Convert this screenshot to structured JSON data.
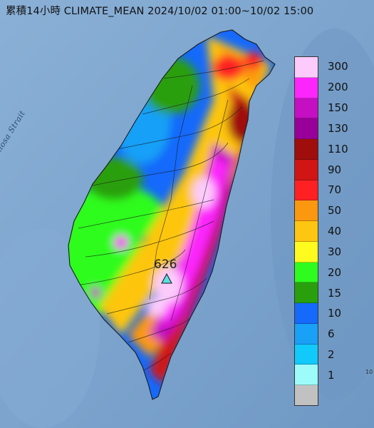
{
  "title": "累積14小時 CLIMATE_MEAN 2024/10/02 01:00~10/02 15:00",
  "strait_label": "Formosa Strait",
  "peak": {
    "value": "626",
    "marker_color": "#5ce0e0"
  },
  "legend": [
    {
      "label": "300",
      "color": "#fccbfb"
    },
    {
      "label": "200",
      "color": "#fc26fc"
    },
    {
      "label": "150",
      "color": "#c40fc2"
    },
    {
      "label": "130",
      "color": "#980099"
    },
    {
      "label": "110",
      "color": "#9f0d0d"
    },
    {
      "label": "90",
      "color": "#d11414"
    },
    {
      "label": "70",
      "color": "#fe2022"
    },
    {
      "label": "50",
      "color": "#fb980f"
    },
    {
      "label": "40",
      "color": "#fdc610"
    },
    {
      "label": "30",
      "color": "#fffb1e"
    },
    {
      "label": "20",
      "color": "#2efc1e"
    },
    {
      "label": "15",
      "color": "#299f0e"
    },
    {
      "label": "10",
      "color": "#1569fb"
    },
    {
      "label": "6",
      "color": "#19a0f7"
    },
    {
      "label": "2",
      "color": "#11c9fb"
    },
    {
      "label": "1",
      "color": "#9dfcfa"
    },
    {
      "label": "",
      "color": "#c1c1c1"
    }
  ],
  "corner_mark": "10"
}
